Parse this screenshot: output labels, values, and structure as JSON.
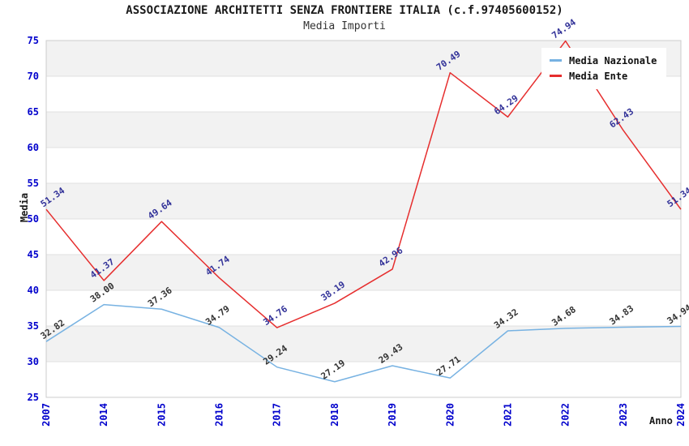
{
  "chart_data": {
    "type": "line",
    "title": "ASSOCIAZIONE ARCHITETTI SENZA FRONTIERE ITALIA (c.f.97405600152)",
    "subtitle": "Media Importi",
    "xlabel": "Anno",
    "ylabel": "Media",
    "categories": [
      "2007",
      "2014",
      "2015",
      "2016",
      "2017",
      "2018",
      "2019",
      "2020",
      "2021",
      "2022",
      "2023",
      "2024"
    ],
    "series": [
      {
        "name": "Media Nazionale",
        "color": "#77b2e2",
        "label_color": "#333333",
        "values": [
          32.82,
          38.0,
          37.36,
          34.79,
          29.24,
          27.19,
          29.43,
          27.71,
          34.32,
          34.68,
          34.83,
          34.94
        ]
      },
      {
        "name": "Media Ente",
        "color": "#e62e2e",
        "label_color": "#333399",
        "values": [
          51.34,
          41.37,
          49.64,
          41.74,
          34.76,
          38.19,
          42.96,
          70.49,
          64.29,
          74.94,
          62.43,
          51.34
        ]
      }
    ],
    "ylim": [
      25,
      75
    ],
    "ytick_step": 5,
    "grid": true,
    "banded_background": true,
    "legend_position": "top-right",
    "colors": {
      "tick_label": "#0000cc",
      "band_gray": "#f2f2f2",
      "gridline": "#e0e0e0",
      "plot_border": "#cccccc"
    }
  }
}
